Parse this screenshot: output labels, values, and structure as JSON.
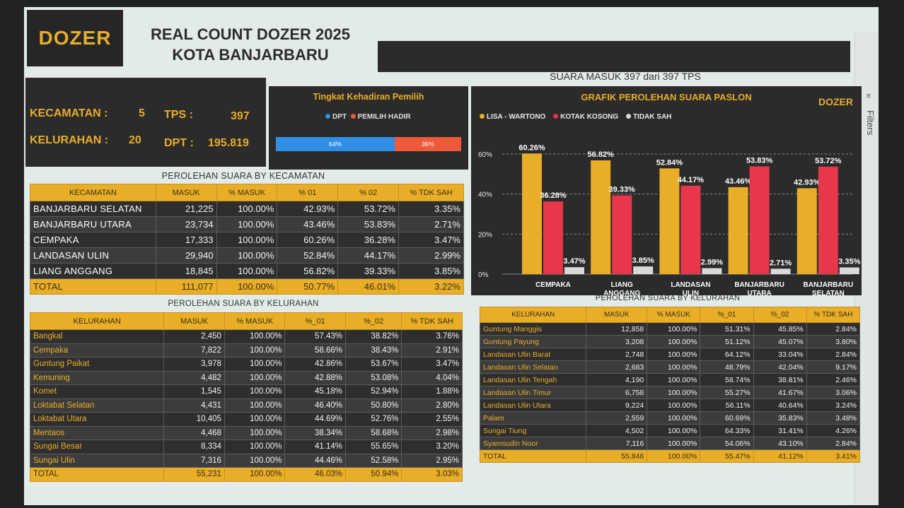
{
  "header": {
    "logo_text": "DOZER",
    "title_line1": "REAL COUNT DOZER 2025",
    "title_line2": "KOTA BANJARBARU",
    "filters_label": "Filters"
  },
  "stats": {
    "kecamatan_label": "KECAMATAN :",
    "kecamatan_value": "5",
    "tps_label": "TPS :",
    "tps_value": "397",
    "kelurahan_label": "KELURAHAN :",
    "kelurahan_value": "20",
    "dpt_label": "DPT :",
    "dpt_value": "195.819"
  },
  "attendance": {
    "title": "Tingkat Kehadiran Pemilih",
    "legend_dpt": "DPT",
    "legend_hadir": "PEMILIH HADIR",
    "dpt_pct": 64,
    "hadir_pct": 36,
    "dpt_label": "64%",
    "hadir_label": "36%",
    "colors": {
      "dpt": "#2f8fe6",
      "hadir": "#ef5a3a"
    }
  },
  "suara_masuk": "SUARA MASUK 397 dari 397 TPS",
  "chart_data": {
    "type": "bar",
    "title": "GRAFIK PEROLEHAN SUARA PASLON",
    "logo": "DOZER",
    "categories": [
      "CEMPAKA",
      "LIANG ANGGANG",
      "LANDASAN ULIN",
      "BANJARBARU UTARA",
      "BANJARBARU SELATAN"
    ],
    "category_lines": [
      [
        "CEMPAKA"
      ],
      [
        "LIANG",
        "ANGGANG"
      ],
      [
        "LANDASAN",
        "ULIN"
      ],
      [
        "BANJARBARU",
        "UTARA"
      ],
      [
        "BANJARBARU",
        "SELATAN"
      ]
    ],
    "series": [
      {
        "name": "LISA - WARTONO",
        "color": "#e9ae28",
        "values": [
          60.26,
          56.82,
          52.84,
          43.46,
          42.93
        ],
        "labels": [
          "60.26%",
          "56.82%",
          "52.84%",
          "43.46%",
          "42.93%"
        ]
      },
      {
        "name": "KOTAK KOSONG",
        "color": "#e8374a",
        "values": [
          36.28,
          39.33,
          44.17,
          53.83,
          53.72
        ],
        "labels": [
          "36.28%",
          "39.33%",
          "44.17%",
          "53.83%",
          "53.72%"
        ]
      },
      {
        "name": "TIDAK SAH",
        "color": "#d9d9d9",
        "values": [
          3.47,
          3.85,
          2.99,
          2.71,
          3.35
        ],
        "labels": [
          "3.47%",
          "3.85%",
          "2.99%",
          "2.71%",
          "3.35%"
        ]
      }
    ],
    "yticks": [
      "0%",
      "20%",
      "40%",
      "60%"
    ],
    "ylim": [
      0,
      60
    ],
    "grid": true,
    "legend": "top-left"
  },
  "kecamatan_table": {
    "title": "PEROLEHAN SUARA BY KECAMATAN",
    "headers": [
      "KECAMATAN",
      "MASUK",
      "% MASUK",
      "% 01",
      "% 02",
      "% TDK SAH"
    ],
    "rows": [
      [
        "BANJARBARU SELATAN",
        "21,225",
        "100.00%",
        "42.93%",
        "53.72%",
        "3.35%"
      ],
      [
        "BANJARBARU UTARA",
        "23,734",
        "100.00%",
        "43.46%",
        "53.83%",
        "2.71%"
      ],
      [
        "CEMPAKA",
        "17,333",
        "100.00%",
        "60.26%",
        "36.28%",
        "3.47%"
      ],
      [
        "LANDASAN ULIN",
        "29,940",
        "100.00%",
        "52.84%",
        "44.17%",
        "2.99%"
      ],
      [
        "LIANG ANGGANG",
        "18,845",
        "100.00%",
        "56.82%",
        "39.33%",
        "3.85%"
      ]
    ],
    "total": [
      "TOTAL",
      "111,077",
      "100.00%",
      "50.77%",
      "46.01%",
      "3.22%"
    ]
  },
  "kelurahan_table_1": {
    "title": "PEROLEHAN SUARA BY KELURAHAN",
    "headers": [
      "KELURAHAN",
      "MASUK",
      "% MASUK",
      "%_01",
      "%_02",
      "% TDK SAH"
    ],
    "rows": [
      [
        "Bangkal",
        "2,450",
        "100.00%",
        "57.43%",
        "38.82%",
        "3.76%"
      ],
      [
        "Cempaka",
        "7,822",
        "100.00%",
        "58.66%",
        "38.43%",
        "2.91%"
      ],
      [
        "Guntung Paikat",
        "3,978",
        "100.00%",
        "42.86%",
        "53.67%",
        "3.47%"
      ],
      [
        "Kemuning",
        "4,482",
        "100.00%",
        "42.88%",
        "53.08%",
        "4.04%"
      ],
      [
        "Komet",
        "1,545",
        "100.00%",
        "45.18%",
        "52.94%",
        "1.88%"
      ],
      [
        "Loktabat Selatan",
        "4,431",
        "100.00%",
        "46.40%",
        "50.80%",
        "2.80%"
      ],
      [
        "Loktabat Utara",
        "10,405",
        "100.00%",
        "44.69%",
        "52.76%",
        "2.55%"
      ],
      [
        "Mentaos",
        "4,468",
        "100.00%",
        "38.34%",
        "58.68%",
        "2.98%"
      ],
      [
        "Sungai Besar",
        "8,334",
        "100.00%",
        "41.14%",
        "55.65%",
        "3.20%"
      ],
      [
        "Sungai Ulin",
        "7,316",
        "100.00%",
        "44.46%",
        "52.58%",
        "2.95%"
      ]
    ],
    "total": [
      "TOTAL",
      "55,231",
      "100.00%",
      "46.03%",
      "50.94%",
      "3.03%"
    ]
  },
  "kelurahan_table_2": {
    "title": "PEROLEHAN SUARA BY KELURAHAN",
    "headers": [
      "KELURAHAN",
      "MASUK",
      "% MASUK",
      "%_01",
      "%_02",
      "% TDK SAH"
    ],
    "rows": [
      [
        "Guntung Manggis",
        "12,858",
        "100.00%",
        "51.31%",
        "45.85%",
        "2.84%"
      ],
      [
        "Guntung Payung",
        "3,208",
        "100.00%",
        "51.12%",
        "45.07%",
        "3.80%"
      ],
      [
        "Landasan Ulin Barat",
        "2,748",
        "100.00%",
        "64.12%",
        "33.04%",
        "2.84%"
      ],
      [
        "Landasan Ulin Selatan",
        "2,683",
        "100.00%",
        "48.79%",
        "42.04%",
        "9.17%"
      ],
      [
        "Landasan Ulin Tengah",
        "4,190",
        "100.00%",
        "58.74%",
        "38.81%",
        "2.46%"
      ],
      [
        "Landasan Ulin Timur",
        "6,758",
        "100.00%",
        "55.27%",
        "41.67%",
        "3.06%"
      ],
      [
        "Landasan Ulin Utara",
        "9,224",
        "100.00%",
        "56.11%",
        "40.64%",
        "3.24%"
      ],
      [
        "Palam",
        "2,559",
        "100.00%",
        "60.69%",
        "35.83%",
        "3.48%"
      ],
      [
        "Sungai Tiung",
        "4,502",
        "100.00%",
        "64.33%",
        "31.41%",
        "4.26%"
      ],
      [
        "Syamsudin Noor",
        "7,116",
        "100.00%",
        "54.06%",
        "43.10%",
        "2.84%"
      ]
    ],
    "total": [
      "TOTAL",
      "55,846",
      "100.00%",
      "55.47%",
      "41.12%",
      "3.41%"
    ]
  }
}
